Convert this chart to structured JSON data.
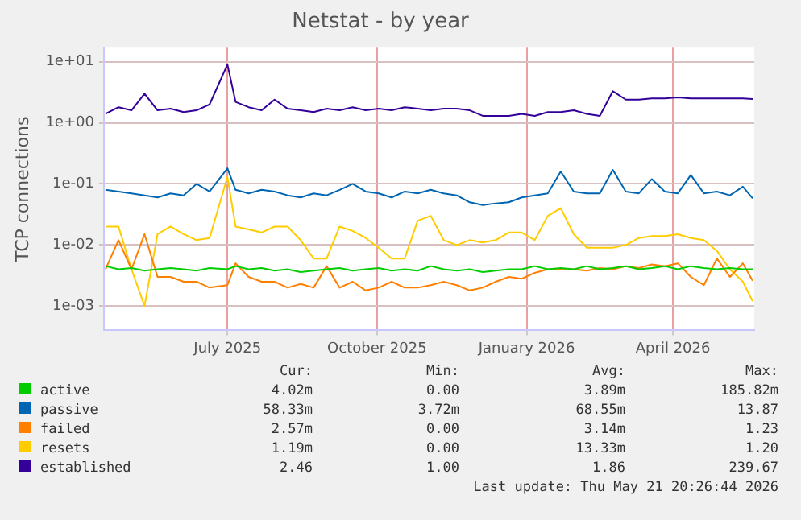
{
  "chart_data": {
    "type": "line",
    "title": "Netstat - by year",
    "ylabel": "TCP connections",
    "log": "y",
    "grid": true,
    "legend": "bottom",
    "marker": "none",
    "line_style": "solid",
    "xlim": [
      "2025-04-16",
      "2026-05-21"
    ],
    "xticks": [
      {
        "value": "2025-07-01",
        "label": "July 2025"
      },
      {
        "value": "2025-10-01",
        "label": "October 2025"
      },
      {
        "value": "2026-01-01",
        "label": "January 2026"
      },
      {
        "value": "2026-04-01",
        "label": "April 2026"
      }
    ],
    "ylim": [
      0.0004,
      17
    ],
    "yticks": [
      {
        "value": 0.001,
        "label": "1e-03"
      },
      {
        "value": 0.01,
        "label": "1e-02"
      },
      {
        "value": 0.1,
        "label": "1e-01"
      },
      {
        "value": 1,
        "label": "1e+00"
      },
      {
        "value": 10,
        "label": "1e+01"
      }
    ],
    "x": [
      "2025-04-17",
      "2025-04-25",
      "2025-05-03",
      "2025-05-11",
      "2025-05-19",
      "2025-05-27",
      "2025-06-04",
      "2025-06-12",
      "2025-06-20",
      "2025-07-01",
      "2025-07-06",
      "2025-07-14",
      "2025-07-22",
      "2025-07-30",
      "2025-08-07",
      "2025-08-15",
      "2025-08-23",
      "2025-08-31",
      "2025-09-08",
      "2025-09-16",
      "2025-09-24",
      "2025-10-02",
      "2025-10-10",
      "2025-10-18",
      "2025-10-26",
      "2025-11-03",
      "2025-11-11",
      "2025-11-19",
      "2025-11-27",
      "2025-12-05",
      "2025-12-13",
      "2025-12-21",
      "2025-12-29",
      "2026-01-06",
      "2026-01-14",
      "2026-01-22",
      "2026-01-30",
      "2026-02-07",
      "2026-02-15",
      "2026-02-23",
      "2026-03-03",
      "2026-03-11",
      "2026-03-19",
      "2026-03-27",
      "2026-04-04",
      "2026-04-12",
      "2026-04-20",
      "2026-04-28",
      "2026-05-06",
      "2026-05-14",
      "2026-05-20"
    ],
    "series": [
      {
        "name": "active",
        "color": "#00cc00",
        "values": [
          0.0045,
          0.004,
          0.0042,
          0.0038,
          0.004,
          0.0042,
          0.004,
          0.0038,
          0.0042,
          0.004,
          0.0045,
          0.004,
          0.0042,
          0.0038,
          0.004,
          0.0036,
          0.0038,
          0.004,
          0.0042,
          0.0038,
          0.004,
          0.0042,
          0.0038,
          0.004,
          0.0038,
          0.0045,
          0.004,
          0.0038,
          0.004,
          0.0036,
          0.0038,
          0.004,
          0.004,
          0.0045,
          0.004,
          0.0042,
          0.004,
          0.0045,
          0.004,
          0.0042,
          0.0045,
          0.004,
          0.0042,
          0.0045,
          0.004,
          0.0045,
          0.0042,
          0.004,
          0.0042,
          0.004,
          0.004
        ]
      },
      {
        "name": "passive",
        "color": "#0066b3",
        "values": [
          0.08,
          0.075,
          0.07,
          0.065,
          0.06,
          0.07,
          0.065,
          0.1,
          0.075,
          0.18,
          0.08,
          0.07,
          0.08,
          0.075,
          0.065,
          0.06,
          0.07,
          0.065,
          0.08,
          0.1,
          0.075,
          0.07,
          0.06,
          0.075,
          0.07,
          0.08,
          0.07,
          0.065,
          0.05,
          0.045,
          0.048,
          0.05,
          0.06,
          0.065,
          0.07,
          0.16,
          0.075,
          0.07,
          0.07,
          0.17,
          0.075,
          0.07,
          0.12,
          0.075,
          0.07,
          0.14,
          0.07,
          0.075,
          0.065,
          0.09,
          0.058
        ]
      },
      {
        "name": "failed",
        "color": "#ff8000",
        "values": [
          0.004,
          0.012,
          0.004,
          0.015,
          0.003,
          0.003,
          0.0025,
          0.0025,
          0.002,
          0.0022,
          0.005,
          0.003,
          0.0025,
          0.0025,
          0.002,
          0.0023,
          0.002,
          0.0045,
          0.002,
          0.0025,
          0.0018,
          0.002,
          0.0025,
          0.002,
          0.002,
          0.0022,
          0.0025,
          0.0022,
          0.0018,
          0.002,
          0.0025,
          0.003,
          0.0028,
          0.0035,
          0.004,
          0.004,
          0.004,
          0.0038,
          0.0042,
          0.004,
          0.0045,
          0.0042,
          0.0048,
          0.0045,
          0.005,
          0.003,
          0.0022,
          0.006,
          0.003,
          0.005,
          0.0026
        ]
      },
      {
        "name": "resets",
        "color": "#ffcc00",
        "values": [
          0.02,
          0.02,
          0.004,
          0.001,
          0.015,
          0.02,
          0.015,
          0.012,
          0.013,
          0.13,
          0.02,
          0.018,
          0.016,
          0.02,
          0.02,
          0.012,
          0.006,
          0.006,
          0.02,
          0.017,
          0.013,
          0.009,
          0.006,
          0.006,
          0.025,
          0.03,
          0.012,
          0.01,
          0.012,
          0.011,
          0.012,
          0.016,
          0.016,
          0.012,
          0.03,
          0.04,
          0.015,
          0.009,
          0.009,
          0.009,
          0.01,
          0.013,
          0.014,
          0.014,
          0.015,
          0.013,
          0.012,
          0.008,
          0.004,
          0.0025,
          0.0012
        ]
      },
      {
        "name": "established",
        "color": "#330099",
        "values": [
          1.4,
          1.8,
          1.6,
          3.0,
          1.6,
          1.7,
          1.5,
          1.6,
          2.0,
          9.0,
          2.2,
          1.8,
          1.6,
          2.4,
          1.7,
          1.6,
          1.5,
          1.7,
          1.6,
          1.8,
          1.6,
          1.7,
          1.6,
          1.8,
          1.7,
          1.6,
          1.7,
          1.7,
          1.6,
          1.3,
          1.3,
          1.3,
          1.4,
          1.3,
          1.5,
          1.5,
          1.6,
          1.4,
          1.3,
          3.3,
          2.4,
          2.4,
          2.5,
          2.5,
          2.6,
          2.5,
          2.5,
          2.5,
          2.5,
          2.5,
          2.46
        ]
      }
    ],
    "annotations": [
      "Cur:",
      "Min:",
      "Avg:",
      "Max:",
      "4.02m",
      "0.00",
      "3.89m",
      "185.82m",
      "58.33m",
      "3.72m",
      "68.55m",
      "13.87",
      "2.57m",
      "0.00",
      "3.14m",
      "1.23",
      "1.19m",
      "0.00",
      "13.33m",
      "1.20",
      "2.46",
      "1.00",
      "1.86",
      "239.67",
      "Last update: Thu May 21 20:26:44 2026"
    ]
  }
}
